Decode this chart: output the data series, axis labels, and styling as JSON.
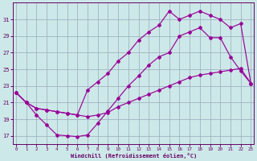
{
  "xlabel": "Windchill (Refroidissement éolien,°C)",
  "background_color": "#cde8e8",
  "grid_color": "#99aabb",
  "line_color": "#990099",
  "xlim": [
    -0.3,
    23.3
  ],
  "ylim": [
    16.0,
    33.0
  ],
  "xticks": [
    0,
    1,
    2,
    3,
    4,
    5,
    6,
    7,
    8,
    9,
    10,
    11,
    12,
    13,
    14,
    15,
    16,
    17,
    18,
    19,
    20,
    21,
    22,
    23
  ],
  "yticks": [
    17,
    19,
    21,
    23,
    25,
    27,
    29,
    31
  ],
  "line1_x": [
    0,
    1,
    2,
    3,
    4,
    5,
    6,
    7,
    8,
    9,
    10,
    11,
    12,
    13,
    14,
    15,
    16,
    17,
    18,
    19,
    20,
    21,
    22,
    23
  ],
  "line1_y": [
    22.2,
    21.0,
    20.3,
    20.1,
    19.9,
    19.7,
    19.5,
    19.3,
    19.5,
    19.8,
    20.5,
    21.0,
    21.5,
    22.0,
    22.5,
    23.0,
    23.5,
    24.0,
    24.3,
    24.5,
    24.7,
    24.9,
    25.1,
    23.3
  ],
  "line2_x": [
    0,
    1,
    2,
    3,
    4,
    5,
    6,
    7,
    8,
    9,
    10,
    11,
    12,
    13,
    14,
    15,
    16,
    17,
    18,
    19,
    20,
    21,
    22,
    23
  ],
  "line2_y": [
    22.2,
    21.0,
    19.5,
    18.3,
    17.1,
    17.0,
    16.9,
    17.1,
    18.5,
    20.0,
    21.5,
    23.0,
    24.2,
    25.5,
    26.5,
    27.0,
    29.0,
    29.5,
    30.0,
    28.8,
    28.8,
    26.5,
    24.8,
    23.3
  ],
  "line3_x": [
    0,
    1,
    2,
    3,
    4,
    5,
    6,
    7,
    8,
    9,
    10,
    11,
    12,
    13,
    14,
    15,
    16,
    17,
    18,
    19,
    20,
    21,
    22,
    23
  ],
  "line3_y": [
    22.2,
    21.0,
    20.3,
    20.1,
    19.9,
    19.7,
    19.5,
    22.5,
    23.5,
    24.5,
    26.0,
    27.0,
    28.5,
    29.5,
    30.3,
    32.0,
    31.0,
    31.5,
    32.0,
    31.5,
    31.0,
    30.0,
    30.5,
    23.3
  ]
}
